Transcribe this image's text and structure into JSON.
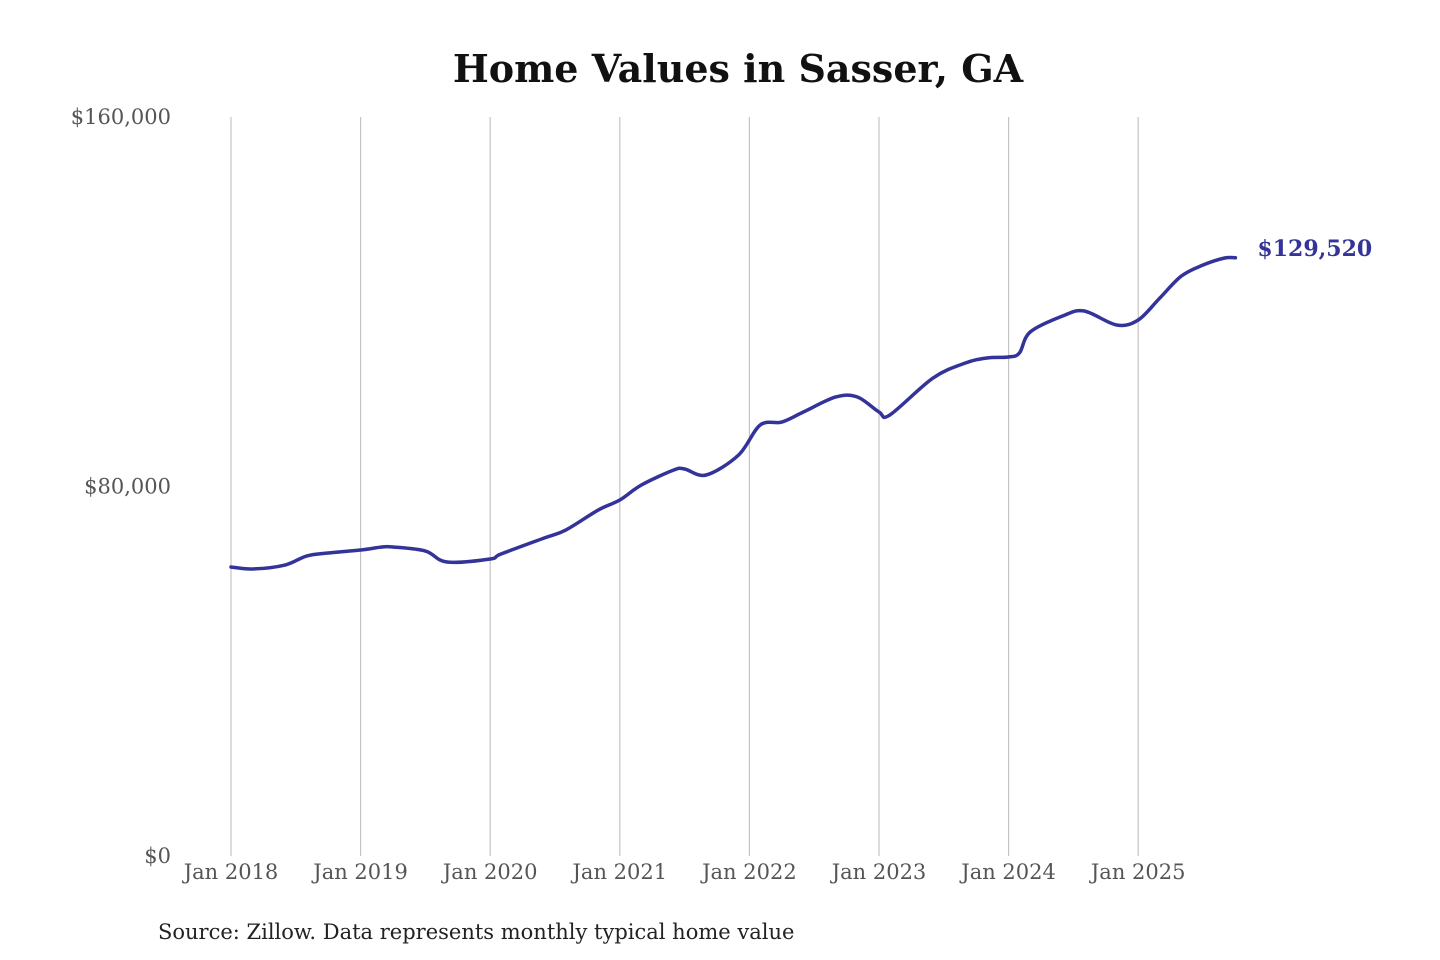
{
  "chart_data": {
    "type": "line",
    "title": "Home Values in Sasser, GA",
    "xlabel": "",
    "ylabel": "",
    "ylim": [
      0,
      160000
    ],
    "y_ticks": [
      0,
      80000,
      160000
    ],
    "y_tick_labels": [
      "$0",
      "$80,000",
      "$160,000"
    ],
    "x_ticks": [
      "2018-01",
      "2019-01",
      "2020-01",
      "2021-01",
      "2022-01",
      "2023-01",
      "2024-01",
      "2025-01"
    ],
    "x_tick_labels": [
      "Jan 2018",
      "Jan 2019",
      "Jan 2020",
      "Jan 2021",
      "Jan 2022",
      "Jan 2023",
      "Jan 2024",
      "Jan 2025"
    ],
    "grid": "vertical",
    "line_color": "#333399",
    "end_label": "$129,520",
    "source": "Source: Zillow. Data represents monthly typical home value",
    "series": [
      {
        "x": [
          "2018-01",
          "2018-03",
          "2018-06",
          "2018-08",
          "2018-10",
          "2019-01",
          "2019-03",
          "2019-04",
          "2019-07",
          "2019-09",
          "2020-01",
          "2020-02",
          "2020-06",
          "2020-08",
          "2020-11",
          "2021-01",
          "2021-03",
          "2021-06",
          "2021-07",
          "2021-09",
          "2021-12",
          "2022-02",
          "2022-04",
          "2022-06",
          "2022-09",
          "2022-11",
          "2023-01",
          "2023-02",
          "2023-06",
          "2023-09",
          "2023-11",
          "2024-01",
          "2024-02",
          "2024-03",
          "2024-06",
          "2024-08",
          "2024-11",
          "2025-01",
          "2025-03",
          "2025-05",
          "2025-07",
          "2025-09",
          "2025-10"
        ],
        "values": [
          62570,
          62140,
          63000,
          64950,
          65600,
          66250,
          66900,
          66900,
          66030,
          63650,
          64300,
          65380,
          68850,
          70580,
          74900,
          77070,
          80320,
          83570,
          83790,
          82490,
          86820,
          93320,
          93960,
          96130,
          99380,
          99380,
          96130,
          95480,
          103490,
          106740,
          107820,
          108040,
          108900,
          113450,
          116910,
          118000,
          114970,
          116050,
          120800,
          125570,
          127950,
          129470,
          129520
        ]
      }
    ]
  }
}
